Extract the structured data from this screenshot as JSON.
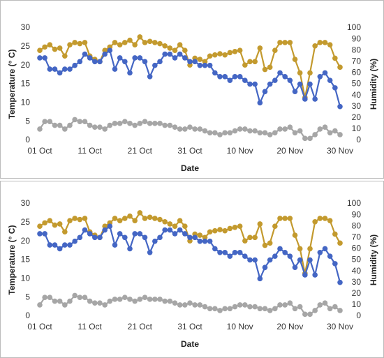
{
  "chart_data": [
    {
      "type": "line",
      "y_label": "Temperature (° C)",
      "y2_label": "Humidity (%)",
      "x_label": "Date",
      "categories": [
        "01 Oct",
        null,
        null,
        null,
        null,
        null,
        null,
        null,
        null,
        null,
        "11 Oct",
        null,
        null,
        null,
        null,
        null,
        null,
        null,
        null,
        null,
        "21 Oct",
        null,
        null,
        null,
        null,
        null,
        null,
        null,
        null,
        null,
        "31 Oct",
        null,
        null,
        null,
        null,
        null,
        null,
        null,
        null,
        null,
        "10 Nov",
        null,
        null,
        null,
        null,
        null,
        null,
        null,
        null,
        null,
        "20 Nov",
        null,
        null,
        null,
        null,
        null,
        null,
        null,
        null,
        null,
        "30 Nov"
      ],
      "series": [
        {
          "color": "#4466c4",
          "values": [
            22,
            22,
            19,
            19,
            18,
            19,
            19,
            20,
            21,
            23,
            22,
            21,
            21,
            23,
            24,
            19,
            22,
            21,
            18,
            22,
            22,
            21,
            17,
            20,
            21,
            23,
            23,
            22,
            23,
            22,
            21,
            21,
            20,
            20,
            20,
            18,
            17,
            17,
            16,
            17,
            17,
            16,
            15,
            15,
            10,
            13,
            15,
            16,
            18,
            17,
            16,
            13,
            15,
            11,
            15,
            11,
            17,
            18,
            16,
            14,
            9
          ]
        },
        {
          "color": "#c39a2e",
          "axis": "y2",
          "values": [
            80,
            83,
            85,
            81,
            82,
            75,
            85,
            87,
            86,
            87,
            75,
            72,
            70,
            80,
            83,
            87,
            85,
            87,
            89,
            85,
            92,
            87,
            88,
            87,
            86,
            84,
            82,
            80,
            85,
            80,
            67,
            73,
            72,
            70,
            75,
            76,
            77,
            76,
            78,
            79,
            80,
            67,
            70,
            70,
            82,
            63,
            65,
            80,
            87,
            87,
            87,
            72,
            60,
            38,
            60,
            84,
            87,
            87,
            85,
            73,
            65
          ]
        },
        {
          "color": "#a6a6a6",
          "values": [
            3,
            5,
            5,
            4,
            4,
            3,
            4,
            5.5,
            5,
            5,
            4,
            3.5,
            3.5,
            3,
            4,
            4.5,
            4.5,
            5,
            4.5,
            4,
            4.5,
            5,
            4.5,
            4.5,
            4.5,
            4,
            4,
            3.5,
            3,
            3,
            3.5,
            3,
            3,
            2.5,
            2,
            2,
            1.5,
            2,
            2,
            2.5,
            3,
            3,
            2.5,
            2.5,
            2,
            2,
            1.5,
            2,
            3,
            3,
            3.5,
            2,
            2.5,
            0.5,
            0.5,
            1.5,
            3,
            3.5,
            2,
            2.5,
            1.5
          ]
        }
      ],
      "ylim": [
        0,
        30
      ],
      "yticks": [
        0,
        5,
        10,
        15,
        20,
        25,
        30
      ],
      "y2lim": [
        0,
        100
      ],
      "y2ticks": [
        0,
        10,
        20,
        30,
        40,
        50,
        60,
        70,
        80,
        90,
        100
      ],
      "grid": false
    },
    {
      "type": "line",
      "y_label": "Temperature (° C)",
      "y2_label": "Humidity (%)",
      "x_label": "Date",
      "categories": [
        "01 Oct",
        null,
        null,
        null,
        null,
        null,
        null,
        null,
        null,
        null,
        "11 Oct",
        null,
        null,
        null,
        null,
        null,
        null,
        null,
        null,
        null,
        "21 Oct",
        null,
        null,
        null,
        null,
        null,
        null,
        null,
        null,
        null,
        "31 Oct",
        null,
        null,
        null,
        null,
        null,
        null,
        null,
        null,
        null,
        "10 Nov",
        null,
        null,
        null,
        null,
        null,
        null,
        null,
        null,
        null,
        "20 Nov",
        null,
        null,
        null,
        null,
        null,
        null,
        null,
        null,
        null,
        "30 Nov"
      ],
      "series": [
        {
          "color": "#4466c4",
          "values": [
            22,
            22,
            19,
            19,
            18,
            19,
            19,
            20,
            21,
            23,
            22,
            21,
            21,
            23,
            24,
            19,
            22,
            21,
            18,
            22,
            22,
            21,
            17,
            20,
            21,
            23,
            23,
            22,
            23,
            22,
            21,
            21,
            20,
            20,
            20,
            18,
            17,
            17,
            16,
            17,
            17,
            16,
            15,
            15,
            10,
            13,
            15,
            16,
            18,
            17,
            16,
            13,
            15,
            11,
            15,
            11,
            17,
            18,
            16,
            14,
            9
          ]
        },
        {
          "color": "#c39a2e",
          "axis": "y2",
          "values": [
            80,
            83,
            85,
            81,
            82,
            75,
            85,
            87,
            86,
            87,
            75,
            72,
            70,
            80,
            83,
            87,
            85,
            87,
            89,
            85,
            92,
            87,
            88,
            87,
            86,
            84,
            82,
            80,
            85,
            80,
            67,
            73,
            72,
            70,
            75,
            76,
            77,
            76,
            78,
            79,
            80,
            67,
            70,
            70,
            82,
            63,
            65,
            80,
            87,
            87,
            87,
            72,
            60,
            38,
            60,
            84,
            87,
            87,
            85,
            73,
            65
          ]
        },
        {
          "color": "#a6a6a6",
          "values": [
            3,
            5,
            5,
            4,
            4,
            3,
            4,
            5.5,
            5,
            5,
            4,
            3.5,
            3.5,
            3,
            4,
            4.5,
            4.5,
            5,
            4.5,
            4,
            4.5,
            5,
            4.5,
            4.5,
            4.5,
            4,
            4,
            3.5,
            3,
            3,
            3.5,
            3,
            3,
            2.5,
            2,
            2,
            1.5,
            2,
            2,
            2.5,
            3,
            3,
            2.5,
            2.5,
            2,
            2,
            1.5,
            2,
            3,
            3,
            3.5,
            2,
            2.5,
            0.5,
            0.5,
            1.5,
            3,
            3.5,
            2,
            2.5,
            1.5
          ]
        }
      ],
      "ylim": [
        0,
        30
      ],
      "yticks": [
        0,
        5,
        10,
        15,
        20,
        25,
        30
      ],
      "y2lim": [
        0,
        100
      ],
      "y2ticks": [
        0,
        10,
        20,
        30,
        40,
        50,
        60,
        70,
        80,
        90,
        100
      ],
      "grid": false
    }
  ]
}
